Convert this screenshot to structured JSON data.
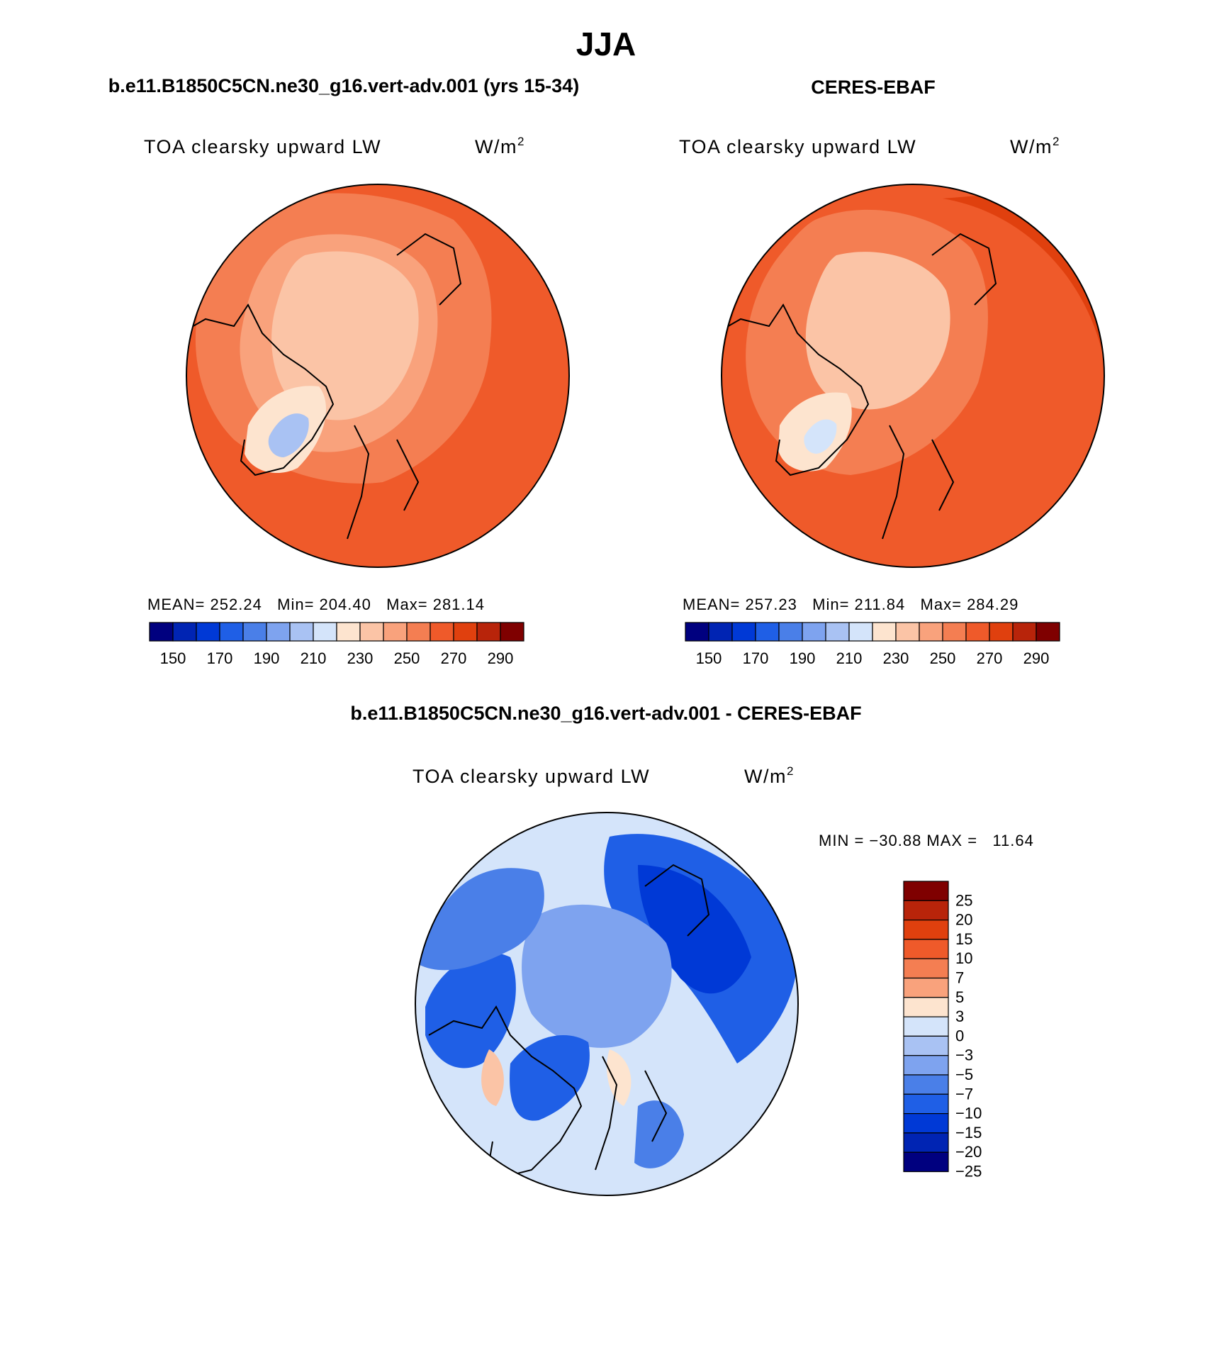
{
  "page_title": "JJA",
  "panels": [
    {
      "heading": "b.e11.B1850C5CN.ne30_g16.vert-adv.001 (yrs 15-34)",
      "field_label": "TOA clearsky upward LW",
      "unit_base": "W/m",
      "unit_exp": "2",
      "stats": "MEAN= 252.24   Min= 204.40   Max= 281.14",
      "colorbar_colors": [
        "#00007f",
        "#0024b3",
        "#0039d6",
        "#1f5fe6",
        "#4a7fe8",
        "#7ea3ef",
        "#a9c2f3",
        "#d4e4fa",
        "#fde4cf",
        "#fbc4a6",
        "#f9a27c",
        "#f47e52",
        "#ef5a2a",
        "#e0400e",
        "#b8240a",
        "#7f0000"
      ],
      "colorbar_labels": [
        "150",
        "170",
        "190",
        "210",
        "230",
        "250",
        "270",
        "290"
      ]
    },
    {
      "heading": "CERES-EBAF",
      "field_label": "TOA clearsky upward LW",
      "unit_base": "W/m",
      "unit_exp": "2",
      "stats": "MEAN= 257.23   Min= 211.84   Max= 284.29",
      "colorbar_colors": [
        "#00007f",
        "#0024b3",
        "#0039d6",
        "#1f5fe6",
        "#4a7fe8",
        "#7ea3ef",
        "#a9c2f3",
        "#d4e4fa",
        "#fde4cf",
        "#fbc4a6",
        "#f9a27c",
        "#f47e52",
        "#ef5a2a",
        "#e0400e",
        "#b8240a",
        "#7f0000"
      ],
      "colorbar_labels": [
        "150",
        "170",
        "190",
        "210",
        "230",
        "250",
        "270",
        "290"
      ]
    }
  ],
  "diff_panel": {
    "heading": "b.e11.B1850C5CN.ne30_g16.vert-adv.001 - CERES-EBAF",
    "field_label": "TOA clearsky upward LW",
    "unit_base": "W/m",
    "unit_exp": "2",
    "stats": "MIN = −30.88 MAX =   11.64",
    "colorbar_colors": [
      "#7f0000",
      "#b8240a",
      "#e0400e",
      "#ef5a2a",
      "#f47e52",
      "#f9a27c",
      "#fde4cf",
      "#d4e4fa",
      "#a9c2f3",
      "#7ea3ef",
      "#4a7fe8",
      "#1f5fe6",
      "#0039d6",
      "#0024b3",
      "#00007f"
    ],
    "colorbar_labels": [
      "25",
      "20",
      "15",
      "10",
      "7",
      "5",
      "3",
      "0",
      "−3",
      "−5",
      "−7",
      "−10",
      "−15",
      "−20",
      "−25"
    ]
  },
  "chart_data": [
    {
      "type": "heatmap",
      "title": "TOA clearsky upward LW",
      "units": "W/m2",
      "projection": "north polar stereographic",
      "contour_levels": [
        150,
        160,
        170,
        180,
        190,
        200,
        210,
        220,
        230,
        240,
        250,
        260,
        270,
        280,
        290
      ],
      "mean": 252.24,
      "min": 204.4,
      "max": 281.14
    },
    {
      "type": "heatmap",
      "title": "TOA clearsky upward LW",
      "units": "W/m2",
      "projection": "north polar stereographic",
      "contour_levels": [
        150,
        160,
        170,
        180,
        190,
        200,
        210,
        220,
        230,
        240,
        250,
        260,
        270,
        280,
        290
      ],
      "mean": 257.23,
      "min": 211.84,
      "max": 284.29
    },
    {
      "type": "heatmap",
      "title": "TOA clearsky upward LW",
      "units": "W/m2",
      "projection": "north polar stereographic",
      "contour_levels": [
        -25,
        -20,
        -15,
        -10,
        -7,
        -5,
        -3,
        0,
        3,
        5,
        7,
        10,
        15,
        20,
        25
      ],
      "min": -30.88,
      "max": 11.64
    }
  ]
}
